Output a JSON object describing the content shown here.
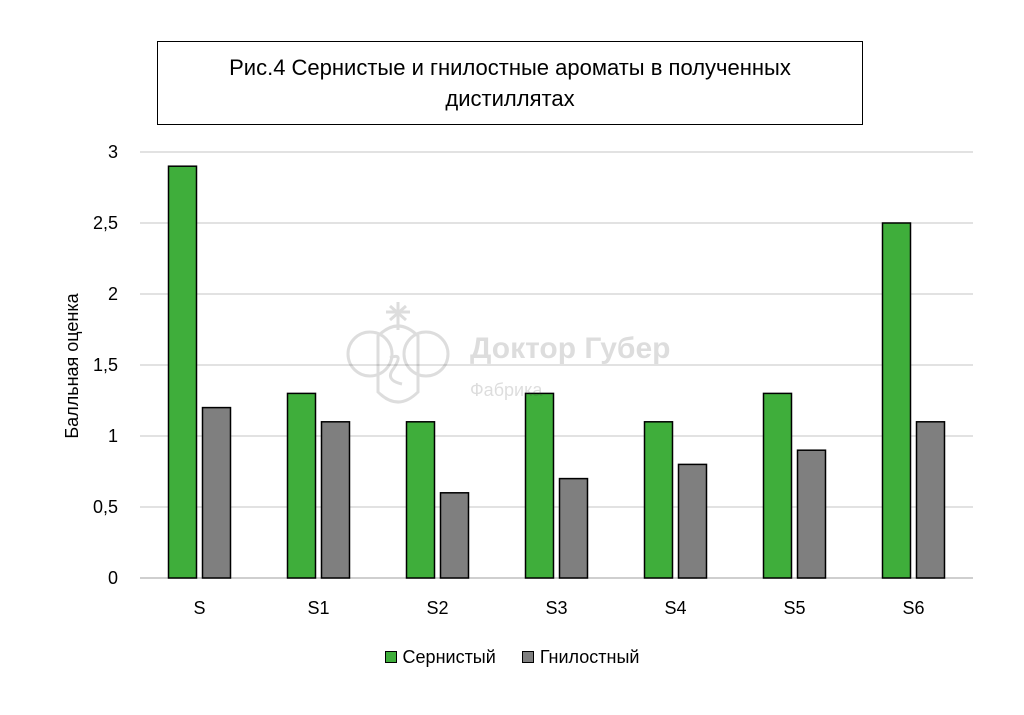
{
  "chart_data": {
    "type": "bar",
    "title": "Рис.4 Сернистые и гнилостные ароматы в полученных дистиллятах",
    "xlabel": "",
    "ylabel": "Балльная оценка",
    "categories": [
      "S",
      "S1",
      "S2",
      "S3",
      "S4",
      "S5",
      "S6"
    ],
    "series": [
      {
        "name": "Сернистый",
        "color": "#3fae3b",
        "values": [
          2.9,
          1.3,
          1.1,
          1.3,
          1.1,
          1.3,
          2.5
        ]
      },
      {
        "name": "Гнилостный",
        "color": "#7f7f7f",
        "values": [
          1.2,
          1.1,
          0.6,
          0.7,
          0.8,
          0.9,
          1.1
        ]
      }
    ],
    "ylim": [
      0,
      3
    ],
    "yticks": [
      "0",
      "0,5",
      "1",
      "1,5",
      "2",
      "2,5",
      "3"
    ],
    "grid": true,
    "legend_position": "bottom"
  },
  "watermark": {
    "name": "Доктор Губер",
    "subtitle": "Фабрика",
    "icon": "crest-icon"
  }
}
